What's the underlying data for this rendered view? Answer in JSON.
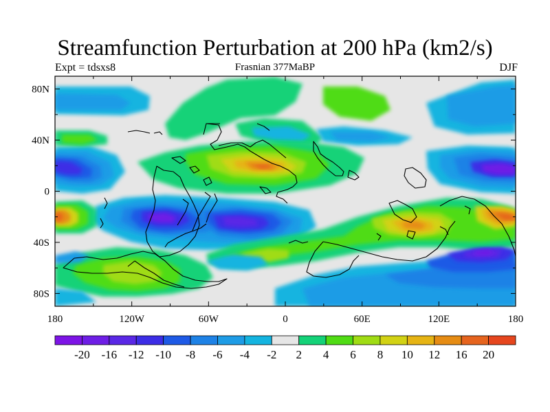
{
  "chart_data": {
    "type": "heatmap",
    "title": "Streamfunction Perturbation at 200 hPa (km2/s)",
    "left_label": "Expt = tdsxs8",
    "center_label": "Frasnian 377MaBP",
    "right_label": "DJF",
    "x_ticks": [
      "180",
      "120W",
      "60W",
      "0",
      "60E",
      "120E",
      "180"
    ],
    "x_tick_values": [
      -180,
      -120,
      -60,
      0,
      60,
      120,
      180
    ],
    "y_ticks": [
      "80N",
      "40N",
      "0",
      "40S",
      "80S"
    ],
    "y_tick_values": [
      80,
      40,
      0,
      -40,
      -80
    ],
    "xlim": [
      -180,
      180
    ],
    "ylim": [
      -90,
      90
    ],
    "colorbar": {
      "labels": [
        "-20",
        "-16",
        "-12",
        "-10",
        "-8",
        "-6",
        "-4",
        "-2",
        "2",
        "4",
        "6",
        "8",
        "10",
        "12",
        "16",
        "20"
      ],
      "levels": [
        -20,
        -16,
        -12,
        -10,
        -8,
        -6,
        -4,
        -2,
        2,
        4,
        6,
        8,
        10,
        12,
        16,
        20
      ],
      "colors": [
        "#7d14e6",
        "#6e1ee6",
        "#5a28e6",
        "#3c2de6",
        "#1e5ae6",
        "#1e82e6",
        "#1e9ce6",
        "#14b4e0",
        "#e6e6e6",
        "#14d278",
        "#50dc14",
        "#a0dc14",
        "#d2d214",
        "#e6b414",
        "#e68c14",
        "#e6641e",
        "#e6461e"
      ]
    },
    "features": [
      {
        "name": "low-west-pacific-north",
        "lon": -160,
        "lat": 20,
        "value": -20
      },
      {
        "name": "low-east-pacific-north",
        "lon": 165,
        "lat": 18,
        "value": -20
      },
      {
        "name": "low-south-pacific",
        "lon": -100,
        "lat": -20,
        "value": -20
      },
      {
        "name": "low-south-atlantic",
        "lon": -40,
        "lat": -22,
        "value": -16
      },
      {
        "name": "low-southern-ocean",
        "lon": 150,
        "lat": -48,
        "value": -10
      },
      {
        "name": "high-atlantic-north",
        "lon": -20,
        "lat": 20,
        "value": 16
      },
      {
        "name": "high-indian-south",
        "lon": 100,
        "lat": -25,
        "value": 12
      },
      {
        "name": "high-dateline-south",
        "lon": -175,
        "lat": -20,
        "value": 12
      },
      {
        "name": "high-east-south",
        "lon": 175,
        "lat": -20,
        "value": 16
      }
    ]
  }
}
